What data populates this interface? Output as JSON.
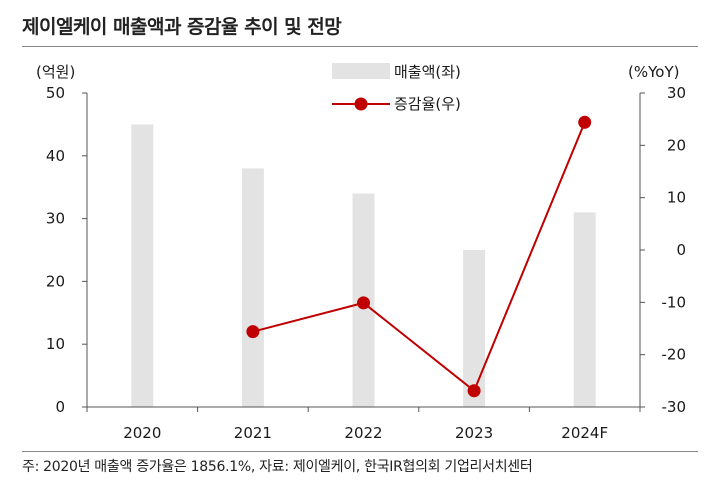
{
  "title": "제이엘케이 매출액과 증감율 추이 및 전망",
  "note": "주: 2020년 매출액 증가율은 1856.1%, 자료: 제이엘케이, 한국IR협의회 기업리서치센터",
  "chart_data": {
    "type": "bar",
    "categories": [
      "2020",
      "2021",
      "2022",
      "2023",
      "2024F"
    ],
    "left_axis": {
      "unit": "(억원)",
      "ylim": [
        0,
        50
      ],
      "ticks": [
        0,
        10,
        20,
        30,
        40,
        50
      ]
    },
    "right_axis": {
      "unit": "(%YoY)",
      "ylim": [
        -30,
        30
      ],
      "ticks": [
        -30,
        -20,
        -10,
        0,
        10,
        20,
        30
      ]
    },
    "series": [
      {
        "name": "매출액(좌)",
        "type": "bar",
        "axis": "left",
        "color": "#e3e3e3",
        "values": [
          45,
          38,
          34,
          25,
          31
        ]
      },
      {
        "name": "증감율(우)",
        "type": "line",
        "axis": "right",
        "color": "#c00000",
        "values": [
          null,
          -15.6,
          -10.1,
          -26.9,
          24.4
        ]
      }
    ],
    "grid": false,
    "legend_position": "top-center"
  }
}
